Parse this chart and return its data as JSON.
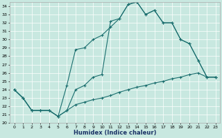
{
  "xlabel": "Humidex (Indice chaleur)",
  "bg_color": "#c8e8e0",
  "line_color": "#1a6e6e",
  "xlim": [
    -0.5,
    23.5
  ],
  "ylim": [
    20,
    34.5
  ],
  "yticks": [
    20,
    21,
    22,
    23,
    24,
    25,
    26,
    27,
    28,
    29,
    30,
    31,
    32,
    33,
    34
  ],
  "xticks": [
    0,
    1,
    2,
    3,
    4,
    5,
    6,
    7,
    8,
    9,
    10,
    11,
    12,
    13,
    14,
    15,
    16,
    17,
    18,
    19,
    20,
    21,
    22,
    23
  ],
  "line1_x": [
    0,
    1,
    2,
    3,
    4,
    5,
    6,
    7,
    8,
    9,
    10,
    11,
    12,
    13,
    14,
    15,
    16,
    17,
    18,
    19,
    20,
    21,
    22,
    23
  ],
  "line1_y": [
    24.0,
    23.0,
    21.5,
    21.5,
    21.5,
    20.8,
    24.5,
    28.8,
    29.0,
    30.0,
    30.5,
    31.5,
    32.5,
    34.2,
    34.5,
    33.0,
    33.5,
    32.0,
    32.0,
    30.0,
    29.5,
    27.5,
    25.5,
    25.5
  ],
  "line2_x": [
    0,
    1,
    2,
    3,
    4,
    5,
    6,
    7,
    8,
    9,
    10,
    11,
    12,
    13,
    14,
    15,
    16,
    17,
    18,
    19,
    20,
    21,
    22,
    23
  ],
  "line2_y": [
    24.0,
    23.0,
    21.5,
    21.5,
    21.5,
    20.8,
    21.5,
    24.0,
    24.5,
    25.5,
    25.8,
    32.2,
    32.5,
    34.2,
    34.5,
    33.0,
    33.5,
    32.0,
    32.0,
    30.0,
    29.5,
    27.5,
    25.5,
    25.5
  ],
  "line3_x": [
    0,
    1,
    2,
    3,
    4,
    5,
    6,
    7,
    8,
    9,
    10,
    11,
    12,
    13,
    14,
    15,
    16,
    17,
    18,
    19,
    20,
    21,
    22,
    23
  ],
  "line3_y": [
    24.0,
    23.0,
    21.5,
    21.5,
    21.5,
    20.8,
    21.5,
    22.2,
    22.5,
    22.8,
    23.0,
    23.3,
    23.7,
    24.0,
    24.3,
    24.5,
    24.8,
    25.0,
    25.3,
    25.5,
    25.8,
    26.0,
    25.5,
    25.5
  ]
}
